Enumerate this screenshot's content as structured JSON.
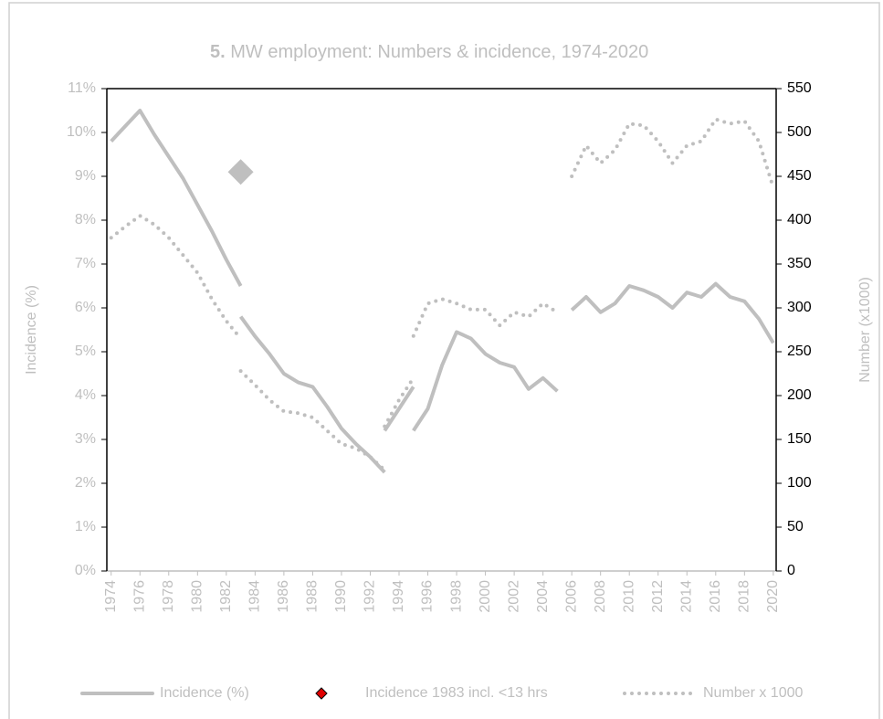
{
  "chart_data": {
    "type": "line",
    "title_number": "5.",
    "title": "MW employment: Numbers & incidence, 1974-2020",
    "ylabel": "Incidence (%)",
    "y2label": "Number (x1000)",
    "xlim": [
      1973.7,
      2020.2
    ],
    "xticks": [
      1974,
      1976,
      1978,
      1980,
      1982,
      1984,
      1986,
      1988,
      1990,
      1992,
      1994,
      1996,
      1998,
      2000,
      2002,
      2004,
      2006,
      2008,
      2010,
      2012,
      2014,
      2016,
      2018,
      2020
    ],
    "ylim": [
      0,
      11
    ],
    "yticks": [
      {
        "value": 0,
        "label": "0%"
      },
      {
        "value": 1,
        "label": "1%"
      },
      {
        "value": 2,
        "label": "2%"
      },
      {
        "value": 3,
        "label": "3%"
      },
      {
        "value": 4,
        "label": "4%"
      },
      {
        "value": 5,
        "label": "5%"
      },
      {
        "value": 6,
        "label": "6%"
      },
      {
        "value": 7,
        "label": "7%"
      },
      {
        "value": 8,
        "label": "8%"
      },
      {
        "value": 9,
        "label": "9%"
      },
      {
        "value": 10,
        "label": "10%"
      },
      {
        "value": 11,
        "label": "11%"
      }
    ],
    "y2lim": [
      0,
      550
    ],
    "y2ticks": [
      0,
      50,
      100,
      150,
      200,
      250,
      300,
      350,
      400,
      450,
      500,
      550
    ],
    "grid": false,
    "legend": "bottom",
    "series": [
      {
        "name": "Incidence (%)",
        "color": "#bfbfbf",
        "style": "solid",
        "x": [
          1974,
          1975,
          1976,
          1977,
          1978,
          1979,
          1980,
          1981,
          1982,
          1983,
          1983,
          1983,
          1984,
          1985,
          1986,
          1987,
          1988,
          1989,
          1990,
          1991,
          1992,
          1993,
          1993,
          1993,
          1994,
          1995,
          1995,
          1995,
          1996,
          1997,
          1998,
          1999,
          2000,
          2001,
          2002,
          2003,
          2004,
          2005,
          2005,
          2006,
          2007,
          2008,
          2009,
          2010,
          2011,
          2012,
          2013,
          2014,
          2015,
          2016,
          2017,
          2018,
          2019,
          2020
        ],
        "values": [
          9.8,
          10.15,
          10.5,
          9.95,
          9.45,
          8.95,
          8.35,
          7.75,
          7.1,
          6.5,
          null,
          5.8,
          5.35,
          4.95,
          4.5,
          4.3,
          4.2,
          3.75,
          3.25,
          2.9,
          2.6,
          2.25,
          null,
          3.2,
          3.7,
          4.2,
          null,
          3.2,
          3.7,
          4.7,
          5.45,
          5.3,
          4.95,
          4.75,
          4.65,
          4.15,
          4.4,
          4.1,
          null,
          5.95,
          6.25,
          5.9,
          6.1,
          6.5,
          6.4,
          6.25,
          6.0,
          6.35,
          6.25,
          6.55,
          6.25,
          6.15,
          5.75,
          5.2
        ]
      },
      {
        "name": "Incidence 1983 incl. <13 hrs",
        "color": "#bfbfbf",
        "legend_color": "#e00000",
        "style": "marker",
        "x": [
          1983
        ],
        "values": [
          9.1
        ]
      },
      {
        "name": "Number x 1000",
        "color": "#bfbfbf",
        "style": "dotted",
        "axis": "y2",
        "x": [
          1974,
          1975,
          1976,
          1977,
          1978,
          1979,
          1980,
          1981,
          1982,
          1983,
          1983,
          1983,
          1984,
          1985,
          1986,
          1987,
          1988,
          1989,
          1990,
          1991,
          1992,
          1993,
          1993,
          1993,
          1994,
          1995,
          1995,
          1995,
          1996,
          1997,
          1998,
          1999,
          2000,
          2001,
          2002,
          2003,
          2004,
          2005,
          2005,
          2006,
          2007,
          2008,
          2009,
          2010,
          2011,
          2012,
          2013,
          2014,
          2015,
          2016,
          2017,
          2018,
          2019,
          2020
        ],
        "values": [
          380,
          393,
          405,
          395,
          380,
          360,
          340,
          310,
          285,
          265,
          null,
          228,
          212,
          195,
          182,
          180,
          175,
          160,
          145,
          140,
          130,
          115,
          null,
          165,
          195,
          220,
          null,
          268,
          305,
          310,
          305,
          298,
          298,
          280,
          295,
          290,
          305,
          295,
          null,
          450,
          485,
          465,
          480,
          510,
          508,
          490,
          465,
          485,
          490,
          515,
          510,
          513,
          490,
          437
        ]
      }
    ]
  }
}
